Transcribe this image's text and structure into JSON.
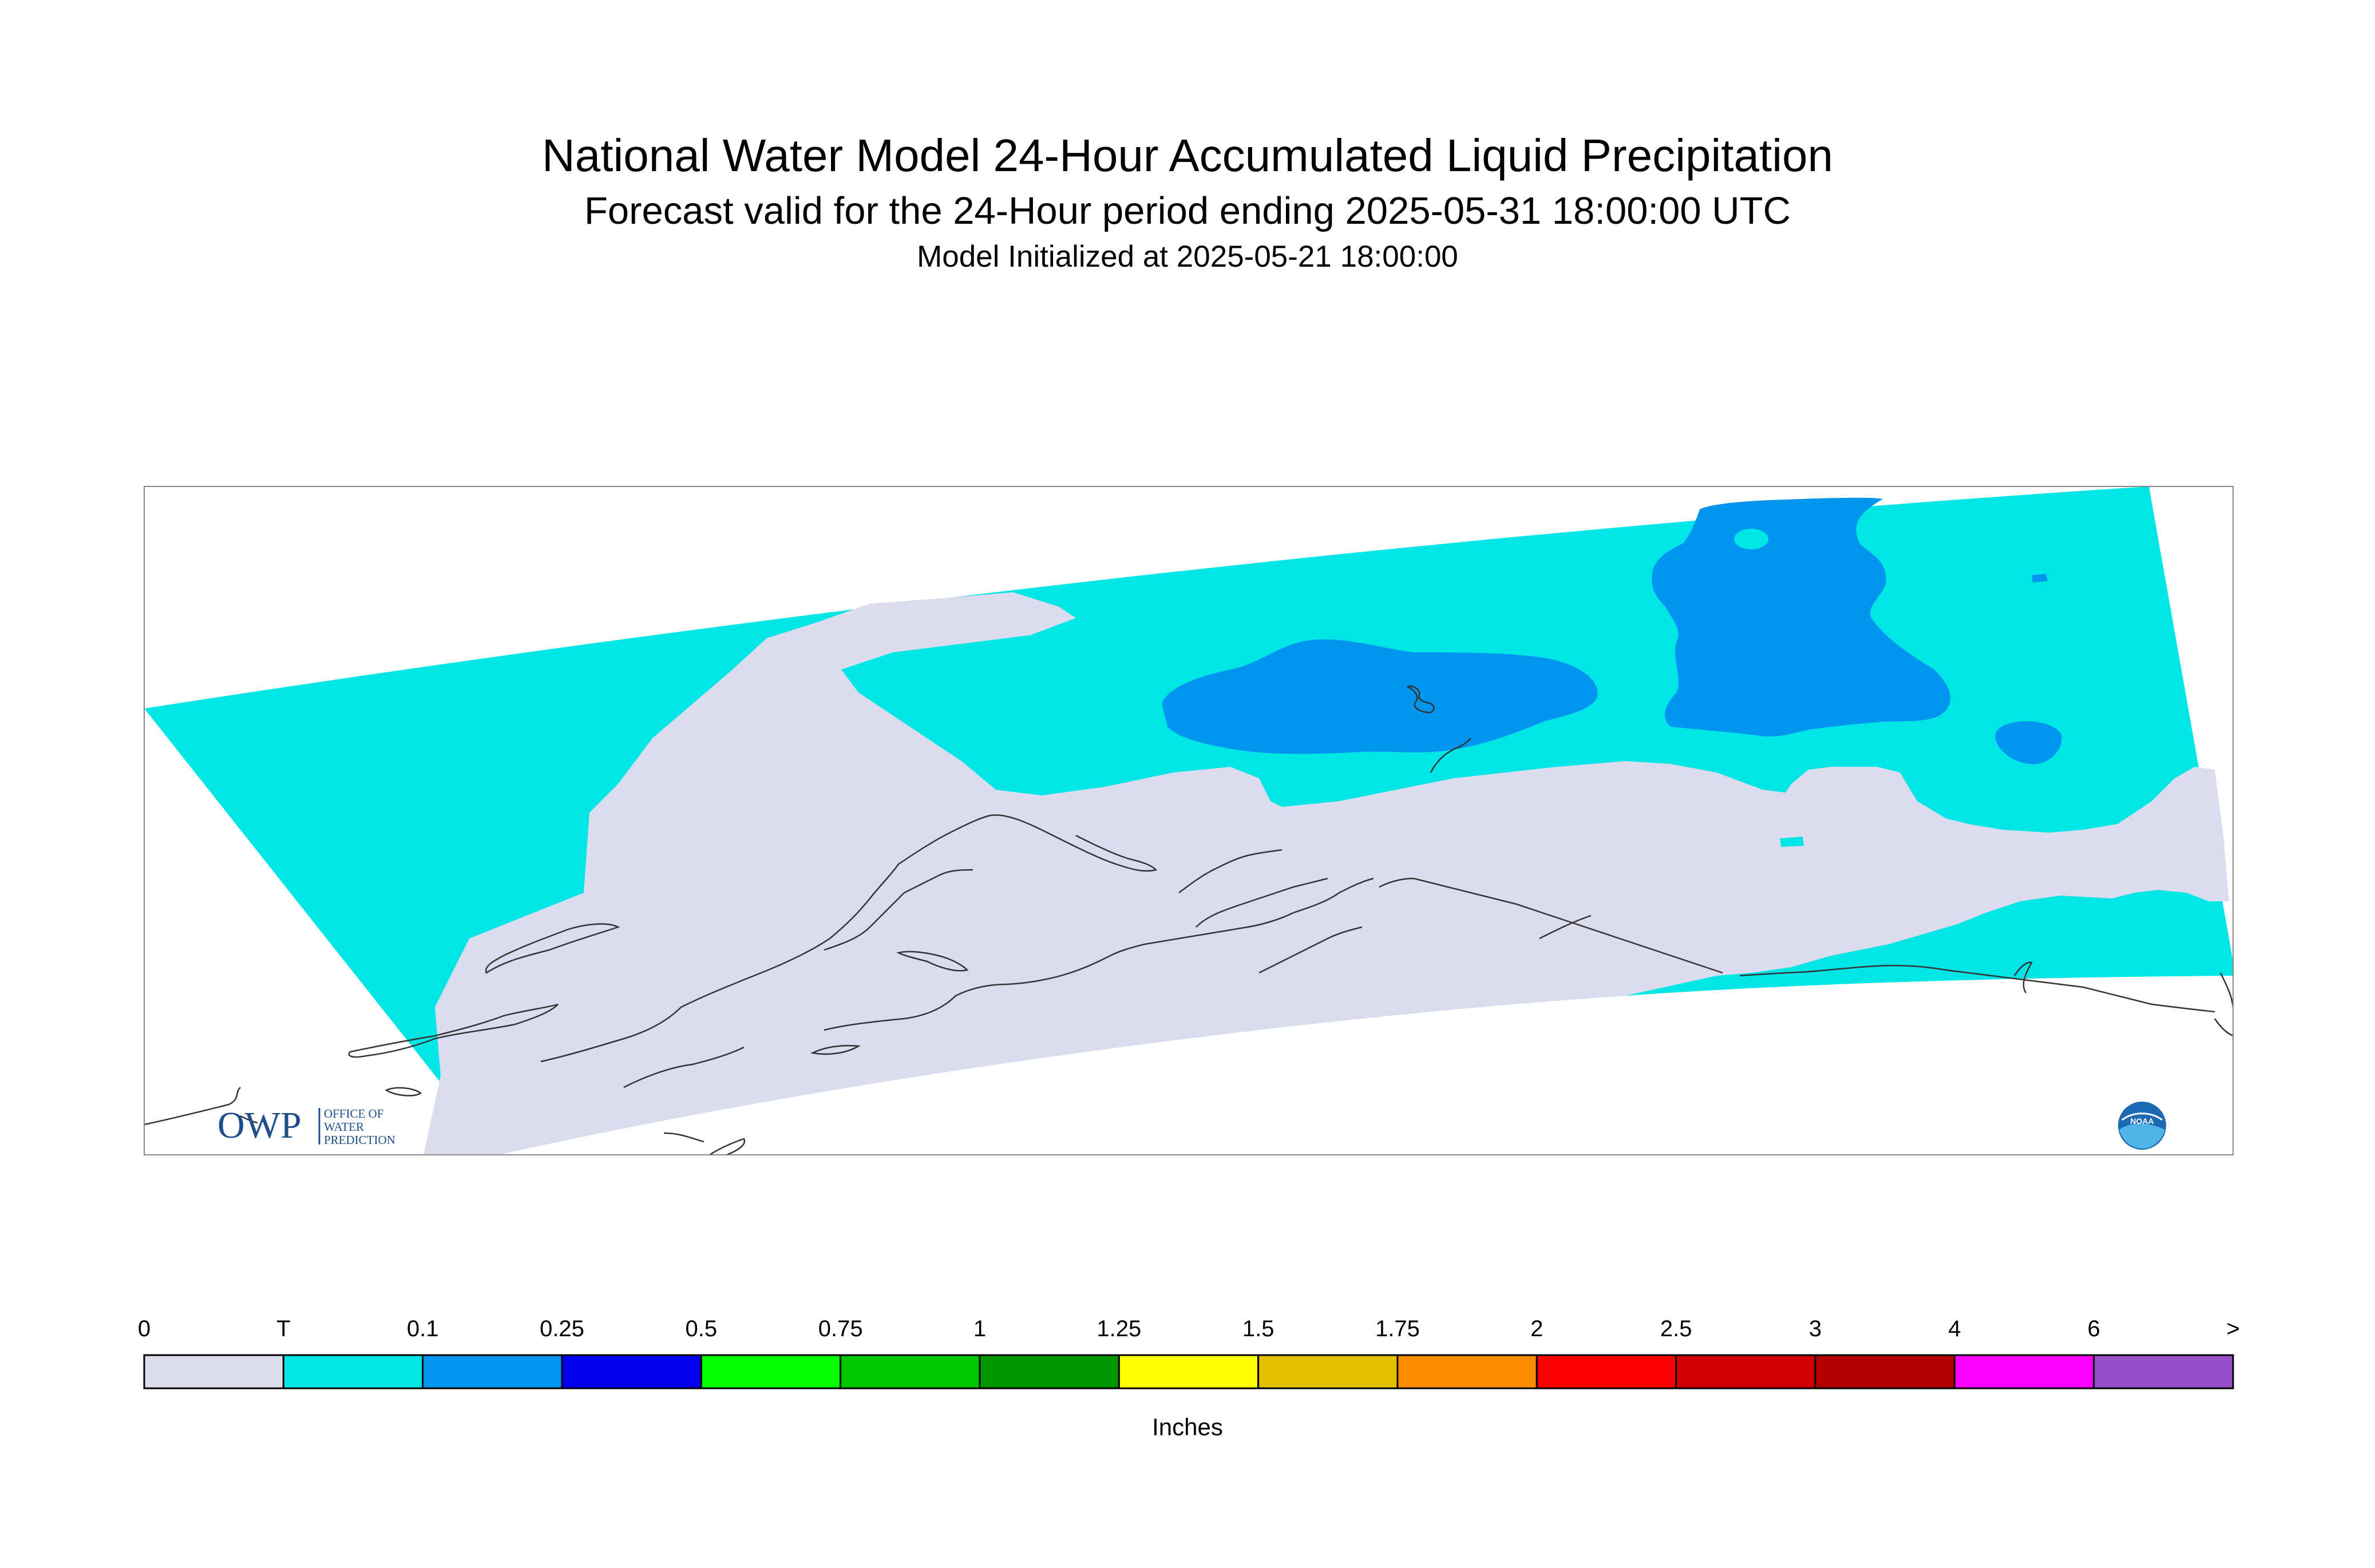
{
  "title": "National Water Model 24-Hour Accumulated Liquid Precipitation",
  "subtitle": "Forecast valid for the 24-Hour period ending 2025-05-31 18:00:00 UTC",
  "init_line": "Model Initialized at 2025-05-21 18:00:00",
  "legend": {
    "units": "Inches",
    "bins": [
      {
        "label": "0",
        "color": "#dcdcef"
      },
      {
        "label": "T",
        "color": "#00e6e6"
      },
      {
        "label": "0.1",
        "color": "#0096f0"
      },
      {
        "label": "0.25",
        "color": "#0000f0"
      },
      {
        "label": "0.5",
        "color": "#00ff00"
      },
      {
        "label": "0.75",
        "color": "#00c800"
      },
      {
        "label": "1",
        "color": "#009600"
      },
      {
        "label": "1.25",
        "color": "#ffff00"
      },
      {
        "label": "1.5",
        "color": "#e6be00"
      },
      {
        "label": "1.75",
        "color": "#ff8c00"
      },
      {
        "label": "2",
        "color": "#ff0000"
      },
      {
        "label": "2.5",
        "color": "#d20000"
      },
      {
        "label": "3",
        "color": "#b40000"
      },
      {
        "label": "4",
        "color": "#ff00ff"
      },
      {
        "label": "6",
        "color": "#9650c8"
      }
    ],
    "end_label": ">"
  },
  "map_colors": {
    "no_precip": "#dcdcef",
    "trace": "#00e6e6",
    "light": "#0096f0"
  },
  "logos": {
    "owp_letters": "OWP",
    "owp_lines": [
      "OFFICE OF",
      "WATER",
      "PREDICTION"
    ],
    "noaa_text": "NOAA"
  }
}
